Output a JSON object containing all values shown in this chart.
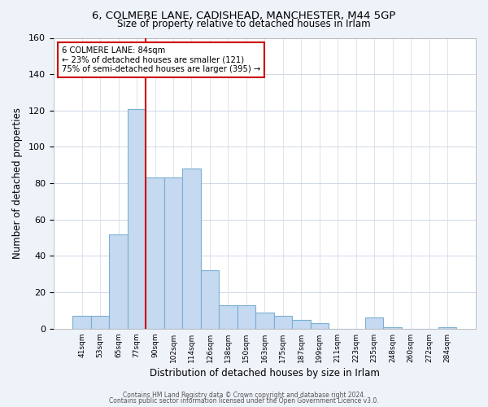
{
  "title": "6, COLMERE LANE, CADISHEAD, MANCHESTER, M44 5GP",
  "subtitle": "Size of property relative to detached houses in Irlam",
  "xlabel": "Distribution of detached houses by size in Irlam",
  "ylabel": "Number of detached properties",
  "bar_color": "#c5d9f0",
  "bar_edge_color": "#7aafd4",
  "bin_labels": [
    "41sqm",
    "53sqm",
    "65sqm",
    "77sqm",
    "90sqm",
    "102sqm",
    "114sqm",
    "126sqm",
    "138sqm",
    "150sqm",
    "163sqm",
    "175sqm",
    "187sqm",
    "199sqm",
    "211sqm",
    "223sqm",
    "235sqm",
    "248sqm",
    "260sqm",
    "272sqm",
    "284sqm"
  ],
  "bar_heights": [
    7,
    7,
    52,
    121,
    83,
    83,
    88,
    32,
    13,
    13,
    9,
    7,
    5,
    3,
    0,
    0,
    6,
    1,
    0,
    0,
    1
  ],
  "ylim": [
    0,
    160
  ],
  "yticks": [
    0,
    20,
    40,
    60,
    80,
    100,
    120,
    140,
    160
  ],
  "vline_x_idx": 3,
  "vline_color": "#cc0000",
  "annotation_line1": "6 COLMERE LANE: 84sqm",
  "annotation_line2": "← 23% of detached houses are smaller (121)",
  "annotation_line3": "75% of semi-detached houses are larger (395) →",
  "footer_line1": "Contains HM Land Registry data © Crown copyright and database right 2024.",
  "footer_line2": "Contains public sector information licensed under the Open Government Licence v3.0.",
  "background_color": "#eef2f9",
  "plot_bg_color": "#ffffff",
  "grid_color": "#d0d8e8"
}
